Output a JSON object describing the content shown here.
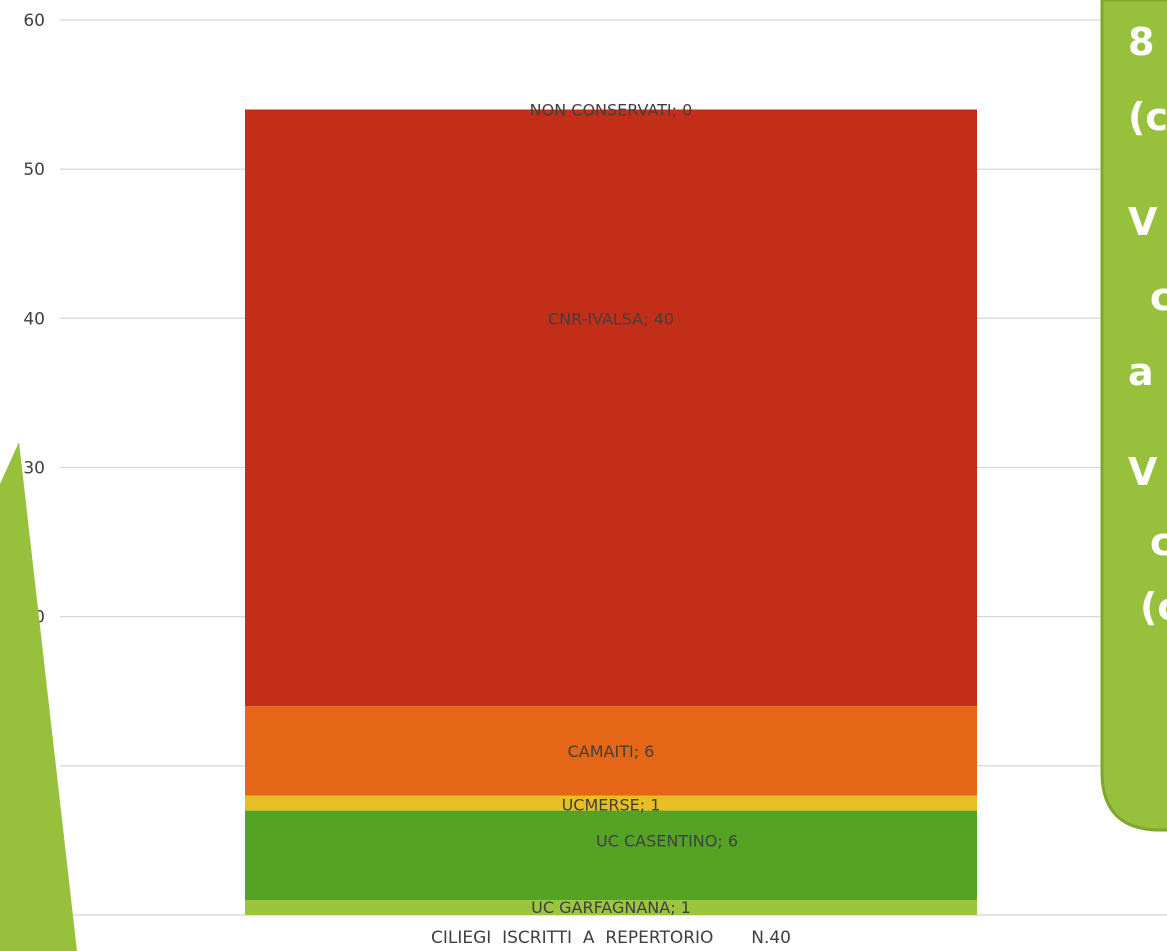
{
  "chart_data": {
    "type": "bar",
    "stacked": true,
    "categories": [
      "CILIEGI  ISCRITTI  A  REPERTORIO       N.40"
    ],
    "series": [
      {
        "name": "UC GARFAGNANA",
        "values": [
          1
        ],
        "color": "#9BC53D",
        "label": "UC GARFAGNANA; 1"
      },
      {
        "name": "UC CASENTINO",
        "values": [
          6
        ],
        "color": "#55A325",
        "label": "UC CASENTINO; 6"
      },
      {
        "name": "UCMERSE",
        "values": [
          1
        ],
        "color": "#E8BE24",
        "label": "UCMERSE; 1"
      },
      {
        "name": "CAMAITI",
        "values": [
          6
        ],
        "color": "#E66618",
        "label": "CAMAITI; 6"
      },
      {
        "name": "CNR-IVALSA",
        "values": [
          40
        ],
        "color": "#C32E18",
        "label": "CNR-IVALSA; 40"
      },
      {
        "name": "NON CONSERVATI",
        "values": [
          0
        ],
        "color": "#C32E18",
        "label": "NON CONSERVATI; 0"
      }
    ],
    "ylim": [
      0,
      60
    ],
    "yticks": [
      "0",
      "10",
      "20",
      "30",
      "40",
      "50",
      "60"
    ],
    "grid": true,
    "legend": "none",
    "title": "",
    "xlabel": "",
    "ylabel": ""
  },
  "callout": {
    "lines": [
      "8",
      "(c",
      "V",
      "c",
      "a",
      "V",
      "c",
      "(c"
    ],
    "fill": "#97C13C",
    "stroke": "#7FA72E"
  },
  "decor": {
    "left_wedge_color": "#97C13C"
  }
}
